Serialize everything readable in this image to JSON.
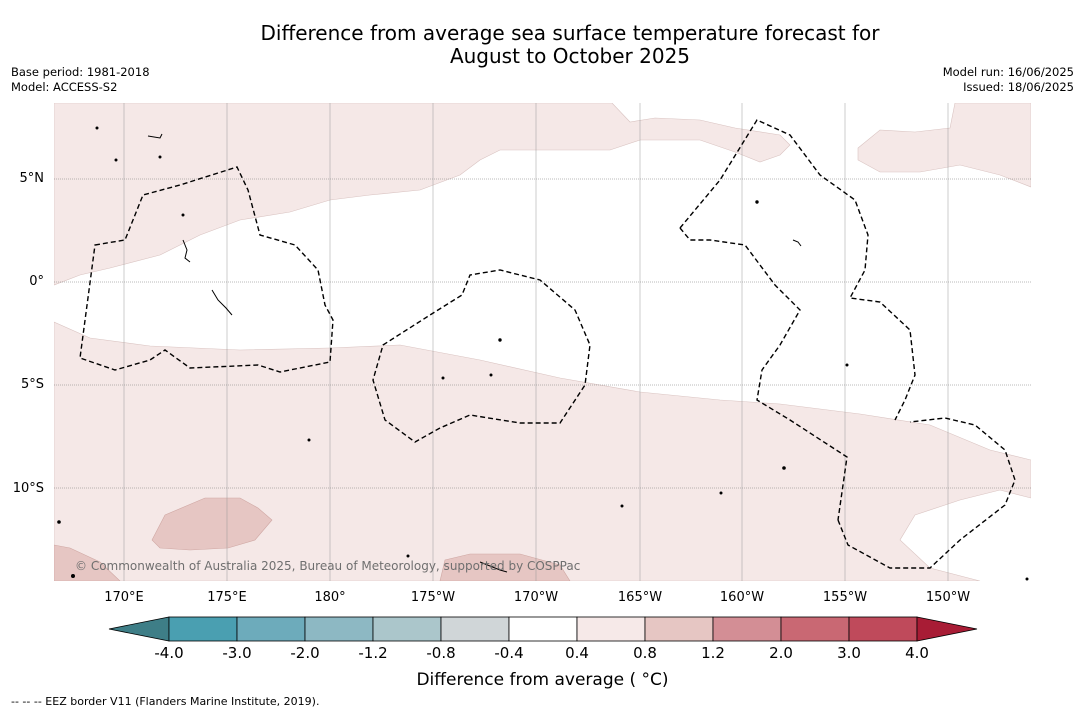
{
  "title": {
    "line1": "Difference from average sea surface temperature forecast for",
    "line2": "August to October 2025"
  },
  "meta_left": {
    "base_period": "Base period: 1981-2018",
    "model": "Model: ACCESS-S2"
  },
  "meta_right": {
    "model_run": "Model run: 16/06/2025",
    "issued": "Issued: 18/06/2025"
  },
  "map": {
    "lat_labels": [
      "5°N",
      "0°",
      "5°S",
      "10°S"
    ],
    "lon_labels": [
      "170°E",
      "175°E",
      "180°",
      "175°W",
      "170°W",
      "165°W",
      "160°W",
      "155°W",
      "150°W"
    ],
    "copyright": "© Commonwealth of Australia 2025, Bureau of Meteorology, supported by COSPPac",
    "colors": {
      "warm_light": "#f5e8e7",
      "warm_mid": "#e6c6c3",
      "background": "#ffffff",
      "eez_border": "#000000"
    }
  },
  "colorbar": {
    "ticks": [
      "-4.0",
      "-3.0",
      "-2.0",
      "-1.2",
      "-0.8",
      "-0.4",
      "0.4",
      "0.8",
      "1.2",
      "2.0",
      "3.0",
      "4.0"
    ],
    "colors": [
      "#3e7e87",
      "#4a9fb1",
      "#6dabbb",
      "#8db8c3",
      "#abc6cb",
      "#d0d6d8",
      "#ffffff",
      "#f6e9e8",
      "#e6c6c3",
      "#d38e95",
      "#c96873",
      "#bf4a5b",
      "#a81c35"
    ],
    "label": "Difference from average ( °C)"
  },
  "footnote": "--  --  -- EEZ border V11 (Flanders Marine Institute, 2019)."
}
